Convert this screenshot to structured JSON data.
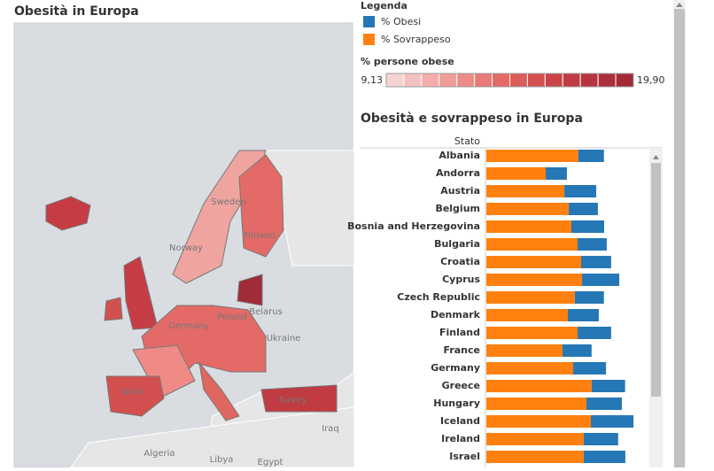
{
  "map": {
    "title": "Obesità in Europa",
    "labels": [
      "Sweden",
      "Finland",
      "Norway",
      "Poland",
      "Germany",
      "Belarus",
      "Ukraine",
      "Spain",
      "Turkey",
      "Iraq",
      "Algeria",
      "Libya",
      "Egypt"
    ]
  },
  "legend": {
    "title": "Legenda",
    "color_scale": {
      "title": "% persone obese",
      "min": {
        "value": 9.13,
        "label": "9,13"
      },
      "max": {
        "value": 19.9,
        "label": "19,90"
      },
      "colors": [
        "#f6d3d3",
        "#f4c0bf",
        "#f3aeac",
        "#f19c99",
        "#ee8b87",
        "#e97a75",
        "#e36a66",
        "#dc5c59",
        "#d44f4f",
        "#cb4448",
        "#c13b43",
        "#b7343f",
        "#ac2f3c",
        "#a22b3a"
      ]
    }
  },
  "chart_data": {
    "type": "bar",
    "orientation": "horizontal",
    "stacked": true,
    "title": "Obesità e sovrappeso in Europa",
    "category_label": "Stato",
    "categories": [
      "Albania",
      "Andorra",
      "Austria",
      "Belgium",
      "Bosnia and Herzegovina",
      "Bulgaria",
      "Croatia",
      "Cyprus",
      "Czech Republic",
      "Denmark",
      "Finland",
      "France",
      "Germany",
      "Greece",
      "Hungary",
      "Iceland",
      "Ireland",
      "Israel"
    ],
    "xlim": [
      0,
      70
    ],
    "series": [
      {
        "name": "% Obesi",
        "color": "#2577b5",
        "values": [
          11.0,
          9.1,
          13.7,
          12.5,
          14.1,
          12.5,
          12.9,
          16.0,
          12.5,
          13.3,
          14.4,
          12.5,
          14.1,
          14.4,
          15.2,
          18.3,
          14.8,
          17.9
        ]
      },
      {
        "name": "% Sovrappeso",
        "color": "#ff800e",
        "values": [
          39.5,
          25.5,
          33.5,
          35.4,
          36.5,
          39.2,
          40.7,
          41.1,
          38.0,
          35.0,
          39.2,
          32.7,
          37.3,
          45.2,
          43.0,
          44.9,
          41.8,
          41.8
        ]
      }
    ]
  }
}
